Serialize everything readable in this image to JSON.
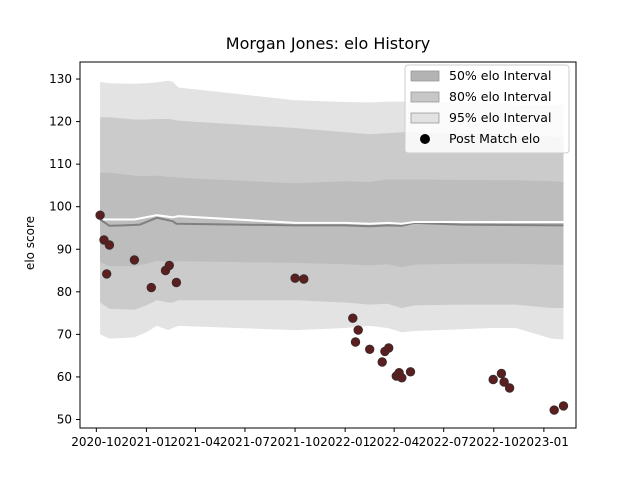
{
  "chart_data": {
    "type": "scatter",
    "title": "Morgan Jones: elo History",
    "xlabel": "",
    "ylabel": "elo score",
    "x_type": "date",
    "xlim": [
      "2020-09-01",
      "2023-03-01"
    ],
    "ylim": [
      48,
      134
    ],
    "x_ticks": [
      {
        "label": "2020-10",
        "date": "2020-10-01"
      },
      {
        "label": "2021-01",
        "date": "2021-01-01"
      },
      {
        "label": "2021-04",
        "date": "2021-04-01"
      },
      {
        "label": "2021-07",
        "date": "2021-07-01"
      },
      {
        "label": "2021-10",
        "date": "2021-10-01"
      },
      {
        "label": "2022-01",
        "date": "2022-01-01"
      },
      {
        "label": "2022-04",
        "date": "2022-04-01"
      },
      {
        "label": "2022-07",
        "date": "2022-07-01"
      },
      {
        "label": "2022-10",
        "date": "2022-10-01"
      },
      {
        "label": "2023-01",
        "date": "2023-01-01"
      }
    ],
    "y_ticks": [
      50,
      60,
      70,
      80,
      90,
      100,
      110,
      120,
      130
    ],
    "grid": false,
    "legend_position": "top-right",
    "legend": [
      {
        "label": "50% elo Interval",
        "type": "band",
        "color": "#b3b3b3"
      },
      {
        "label": "80% elo Interval",
        "type": "band",
        "color": "#c7c7c7"
      },
      {
        "label": "95% elo Interval",
        "type": "band",
        "color": "#e2e2e2"
      },
      {
        "label": "Post Match elo",
        "type": "marker",
        "color": "#000000"
      }
    ],
    "mean_line": {
      "color": "#ffffff",
      "points": [
        {
          "x": "2020-10-08",
          "y": 98.0
        },
        {
          "x": "2020-10-15",
          "y": 97.0
        },
        {
          "x": "2020-11-10",
          "y": 97.0
        },
        {
          "x": "2020-12-10",
          "y": 97.0
        },
        {
          "x": "2021-01-20",
          "y": 98.0
        },
        {
          "x": "2021-02-18",
          "y": 97.5
        },
        {
          "x": "2021-03-01",
          "y": 97.8
        },
        {
          "x": "2021-10-01",
          "y": 96.2
        },
        {
          "x": "2022-01-01",
          "y": 96.2
        },
        {
          "x": "2022-02-15",
          "y": 96.0
        },
        {
          "x": "2022-03-20",
          "y": 96.2
        },
        {
          "x": "2022-04-15",
          "y": 96.0
        },
        {
          "x": "2022-05-08",
          "y": 96.4
        },
        {
          "x": "2022-08-01",
          "y": 96.4
        },
        {
          "x": "2023-02-06",
          "y": 96.4
        }
      ]
    },
    "median_line": {
      "color": "#808080",
      "points": [
        {
          "x": "2020-10-08",
          "y": 97.0
        },
        {
          "x": "2020-10-25",
          "y": 95.5
        },
        {
          "x": "2020-11-20",
          "y": 95.6
        },
        {
          "x": "2020-12-20",
          "y": 95.8
        },
        {
          "x": "2021-01-20",
          "y": 97.4
        },
        {
          "x": "2021-02-18",
          "y": 96.6
        },
        {
          "x": "2021-02-25",
          "y": 96.0
        },
        {
          "x": "2021-10-01",
          "y": 95.6
        },
        {
          "x": "2022-01-01",
          "y": 95.6
        },
        {
          "x": "2022-02-15",
          "y": 95.4
        },
        {
          "x": "2022-03-20",
          "y": 95.6
        },
        {
          "x": "2022-04-15",
          "y": 95.5
        },
        {
          "x": "2022-05-08",
          "y": 96.2
        },
        {
          "x": "2022-08-01",
          "y": 95.8
        },
        {
          "x": "2023-02-06",
          "y": 95.6
        }
      ]
    },
    "bands": [
      {
        "name": "95% elo Interval",
        "color": "#e3e3e3",
        "x": [
          "2020-10-08",
          "2020-10-25",
          "2020-12-10",
          "2021-01-01",
          "2021-01-20",
          "2021-02-10",
          "2021-02-18",
          "2021-03-01",
          "2021-10-01",
          "2022-01-01",
          "2022-02-15",
          "2022-03-20",
          "2022-04-15",
          "2022-05-08",
          "2022-08-01",
          "2022-10-01",
          "2022-11-10",
          "2023-01-15",
          "2023-02-06"
        ],
        "upper": [
          129.3,
          129.0,
          128.9,
          129.0,
          129.2,
          129.6,
          129.4,
          128.0,
          125.0,
          124.6,
          124.5,
          124.7,
          124.7,
          124.5,
          124.5,
          124.2,
          124.0,
          124.0,
          124.0
        ],
        "lower": [
          70.0,
          69.0,
          69.3,
          70.5,
          72.0,
          71.0,
          71.5,
          72.0,
          71.0,
          71.5,
          72.0,
          71.5,
          70.5,
          70.8,
          71.2,
          71.5,
          71.5,
          69.0,
          68.8
        ]
      },
      {
        "name": "80% elo Interval",
        "color": "#cbcbcb",
        "x": [
          "2020-10-08",
          "2020-10-25",
          "2020-12-10",
          "2021-01-01",
          "2021-01-20",
          "2021-02-10",
          "2021-02-18",
          "2021-03-01",
          "2021-10-01",
          "2022-01-01",
          "2022-02-15",
          "2022-03-20",
          "2022-04-15",
          "2022-05-08",
          "2022-08-01",
          "2022-10-01",
          "2022-11-10",
          "2023-01-15",
          "2023-02-06"
        ],
        "upper": [
          121.0,
          121.0,
          120.5,
          120.5,
          120.6,
          120.6,
          120.5,
          120.2,
          118.5,
          117.5,
          117.0,
          117.3,
          117.5,
          117.5,
          117.3,
          117.0,
          116.8,
          116.5,
          116.4
        ],
        "lower": [
          77.5,
          76.0,
          75.8,
          76.8,
          78.0,
          77.5,
          77.5,
          78.0,
          78.0,
          77.5,
          77.0,
          77.2,
          76.2,
          76.8,
          77.0,
          77.0,
          77.0,
          76.2,
          76.2
        ]
      },
      {
        "name": "50% elo Interval",
        "color": "#bdbdbd",
        "x": [
          "2020-10-08",
          "2020-10-25",
          "2020-12-10",
          "2021-01-01",
          "2021-01-20",
          "2021-02-10",
          "2021-02-18",
          "2021-03-01",
          "2021-10-01",
          "2022-01-01",
          "2022-02-15",
          "2022-03-20",
          "2022-04-15",
          "2022-05-08",
          "2022-08-01",
          "2022-10-01",
          "2022-11-10",
          "2023-01-15",
          "2023-02-06"
        ],
        "upper": [
          108.0,
          108.0,
          107.3,
          107.2,
          107.3,
          107.0,
          107.0,
          106.8,
          105.5,
          106.0,
          105.8,
          106.4,
          106.4,
          106.4,
          106.3,
          106.2,
          106.2,
          106.0,
          105.8
        ],
        "lower": [
          87.0,
          86.0,
          86.0,
          86.6,
          87.3,
          87.0,
          87.0,
          87.2,
          86.8,
          86.5,
          86.2,
          86.5,
          85.8,
          86.4,
          86.6,
          86.6,
          86.6,
          86.4,
          86.3
        ]
      }
    ],
    "series": [
      {
        "name": "Post Match elo",
        "color": "#5c1e1e",
        "edgecolor": "#3a2a2a",
        "points": [
          {
            "x": "2020-10-08",
            "y": 98.0
          },
          {
            "x": "2020-10-15",
            "y": 92.2
          },
          {
            "x": "2020-10-20",
            "y": 84.2
          },
          {
            "x": "2020-10-25",
            "y": 91.0
          },
          {
            "x": "2020-12-10",
            "y": 87.5
          },
          {
            "x": "2021-01-10",
            "y": 81.0
          },
          {
            "x": "2021-02-05",
            "y": 85.0
          },
          {
            "x": "2021-02-12",
            "y": 86.2
          },
          {
            "x": "2021-02-25",
            "y": 82.2
          },
          {
            "x": "2021-10-01",
            "y": 83.2
          },
          {
            "x": "2021-10-17",
            "y": 83.0
          },
          {
            "x": "2022-01-15",
            "y": 73.8
          },
          {
            "x": "2022-01-20",
            "y": 68.2
          },
          {
            "x": "2022-01-25",
            "y": 71.0
          },
          {
            "x": "2022-02-15",
            "y": 66.5
          },
          {
            "x": "2022-03-10",
            "y": 63.5
          },
          {
            "x": "2022-03-15",
            "y": 66.0
          },
          {
            "x": "2022-03-22",
            "y": 66.8
          },
          {
            "x": "2022-04-05",
            "y": 60.2
          },
          {
            "x": "2022-04-10",
            "y": 61.0
          },
          {
            "x": "2022-04-15",
            "y": 59.8
          },
          {
            "x": "2022-05-01",
            "y": 61.2
          },
          {
            "x": "2022-09-30",
            "y": 59.4
          },
          {
            "x": "2022-10-15",
            "y": 60.8
          },
          {
            "x": "2022-10-20",
            "y": 58.8
          },
          {
            "x": "2022-10-30",
            "y": 57.4
          },
          {
            "x": "2023-01-20",
            "y": 52.2
          },
          {
            "x": "2023-02-06",
            "y": 53.2
          }
        ]
      }
    ]
  }
}
